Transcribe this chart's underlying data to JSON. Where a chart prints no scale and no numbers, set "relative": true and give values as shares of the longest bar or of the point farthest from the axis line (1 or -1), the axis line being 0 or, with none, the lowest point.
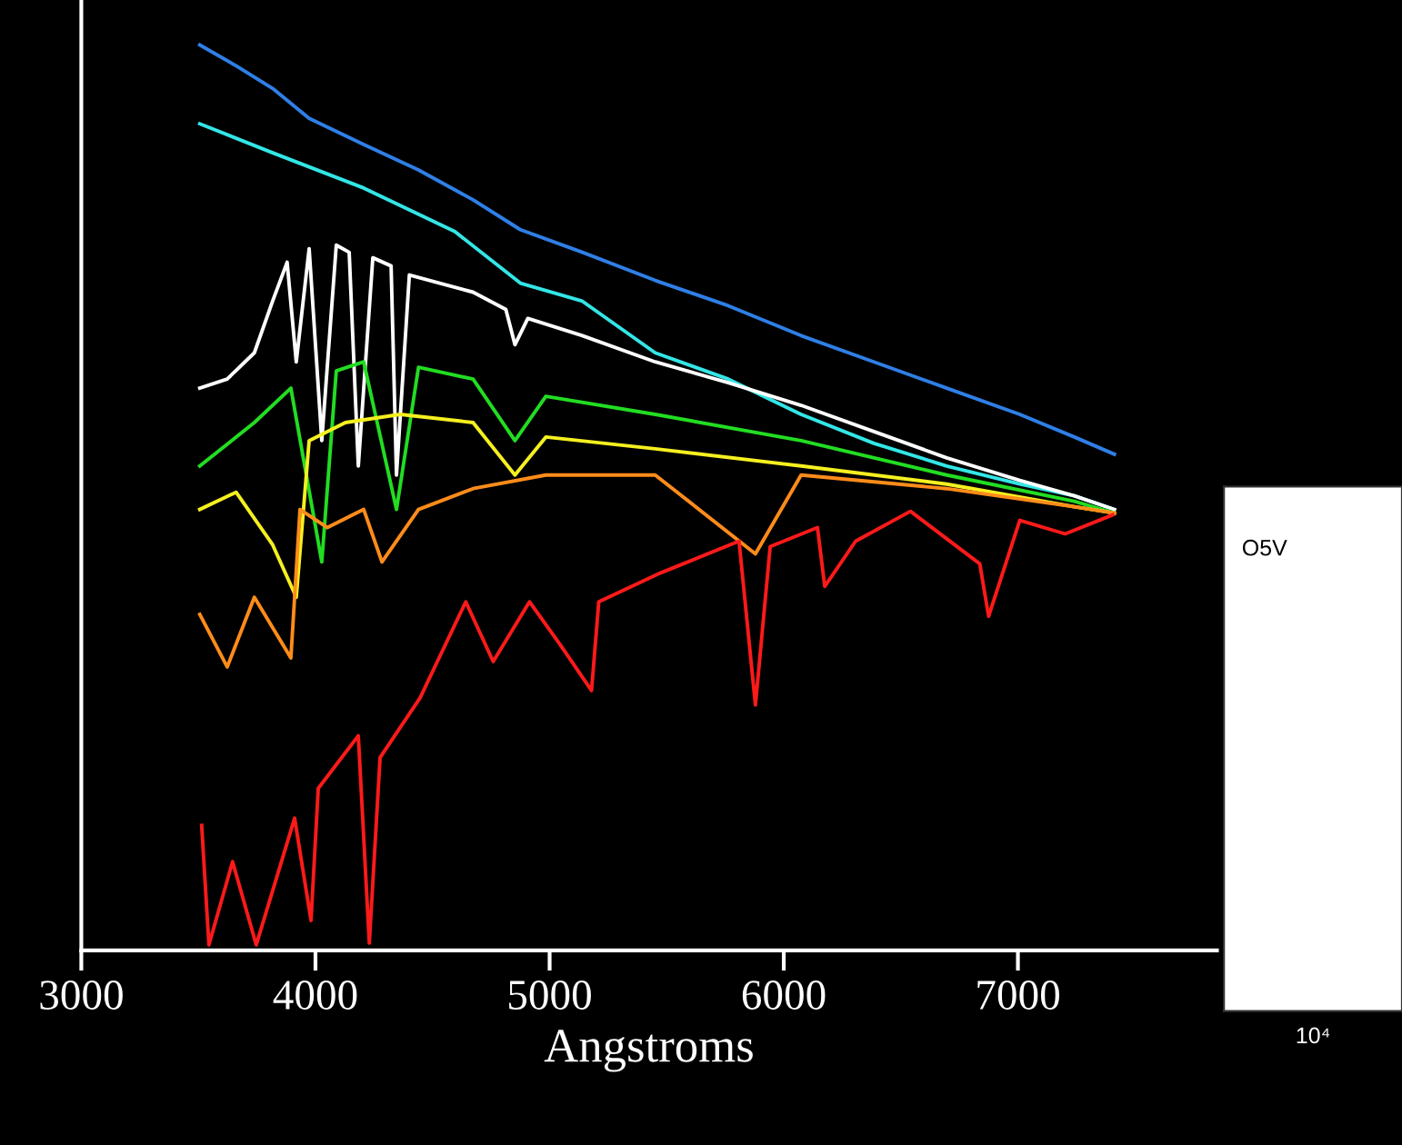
{
  "chart_data": [
    {
      "type": "line",
      "xlabel": "Angstroms",
      "xlim": [
        3000,
        7850
      ],
      "xticks": [
        3000,
        4000,
        5000,
        6000,
        7000
      ],
      "relative": true,
      "tick_labels": "x",
      "grid": false,
      "series": [
        {
          "color": "#2f7fe6",
          "x": [
            3506,
            3661,
            3817,
            3973,
            4206,
            4440,
            4673,
            4875,
            5140,
            5451,
            5763,
            6074,
            6385,
            6696,
            7008,
            7241,
            7412
          ],
          "values": [
            1.0,
            0.977,
            0.952,
            0.919,
            0.89,
            0.862,
            0.829,
            0.796,
            0.771,
            0.74,
            0.712,
            0.679,
            0.65,
            0.621,
            0.592,
            0.567,
            0.548
          ]
        },
        {
          "color": "#33e6e6",
          "x": [
            3506,
            3817,
            4206,
            4595,
            4875,
            5140,
            5451,
            5763,
            6074,
            6385,
            6696,
            7008,
            7241,
            7412
          ],
          "values": [
            0.913,
            0.881,
            0.842,
            0.794,
            0.737,
            0.717,
            0.66,
            0.631,
            0.592,
            0.56,
            0.535,
            0.515,
            0.502,
            0.487
          ]
        },
        {
          "color": "#ffffff",
          "x": [
            3506,
            3623,
            3739,
            3817,
            3879,
            3918,
            3973,
            4027,
            4089,
            4144,
            4183,
            4245,
            4323,
            4346,
            4401,
            4673,
            4813,
            4852,
            4907,
            5140,
            5451,
            5763,
            6074,
            6385,
            6696,
            7008,
            7241,
            7412
          ],
          "values": [
            0.621,
            0.631,
            0.66,
            0.717,
            0.76,
            0.65,
            0.775,
            0.563,
            0.779,
            0.771,
            0.535,
            0.765,
            0.756,
            0.525,
            0.746,
            0.727,
            0.708,
            0.669,
            0.698,
            0.679,
            0.65,
            0.627,
            0.602,
            0.573,
            0.544,
            0.519,
            0.502,
            0.487
          ]
        },
        {
          "color": "#22dd22",
          "x": [
            3506,
            3739,
            3895,
            4027,
            4089,
            4206,
            4346,
            4440,
            4673,
            4852,
            4984,
            5451,
            6074,
            6696,
            7241,
            7412
          ],
          "values": [
            0.535,
            0.583,
            0.621,
            0.429,
            0.64,
            0.65,
            0.487,
            0.644,
            0.631,
            0.563,
            0.612,
            0.592,
            0.563,
            0.525,
            0.496,
            0.483
          ]
        },
        {
          "color": "#f5f020",
          "x": [
            3506,
            3661,
            3817,
            3918,
            3973,
            4128,
            4362,
            4673,
            4852,
            4984,
            5451,
            6074,
            6696,
            7241,
            7412
          ],
          "values": [
            0.487,
            0.506,
            0.448,
            0.39,
            0.563,
            0.583,
            0.592,
            0.583,
            0.525,
            0.567,
            0.554,
            0.535,
            0.515,
            0.49,
            0.483
          ]
        },
        {
          "color": "#ff8c1a",
          "x": [
            3506,
            3623,
            3739,
            3895,
            3934,
            4051,
            4206,
            4284,
            4440,
            4673,
            4984,
            5451,
            5879,
            6074,
            6696,
            7241,
            7412
          ],
          "values": [
            0.371,
            0.313,
            0.39,
            0.323,
            0.487,
            0.467,
            0.487,
            0.429,
            0.487,
            0.51,
            0.525,
            0.525,
            0.438,
            0.525,
            0.51,
            0.49,
            0.483
          ]
        },
        {
          "color": "#ff1a1a",
          "x": [
            3514,
            3545,
            3646,
            3747,
            3911,
            3981,
            4012,
            4183,
            4230,
            4276,
            4447,
            4642,
            4759,
            4914,
            5047,
            5179,
            5210,
            5475,
            5809,
            5879,
            5942,
            6144,
            6175,
            6307,
            6541,
            6837,
            6875,
            7008,
            7202,
            7405
          ],
          "values": [
            0.138,
            0.006,
            0.098,
            0.006,
            0.146,
            0.033,
            0.179,
            0.237,
            0.008,
            0.213,
            0.279,
            0.385,
            0.319,
            0.385,
            0.337,
            0.287,
            0.385,
            0.417,
            0.452,
            0.271,
            0.446,
            0.467,
            0.402,
            0.452,
            0.485,
            0.427,
            0.369,
            0.475,
            0.46,
            0.481
          ]
        }
      ]
    },
    {
      "type": "other",
      "annotations": [
        "O5V",
        "10⁴"
      ]
    }
  ]
}
